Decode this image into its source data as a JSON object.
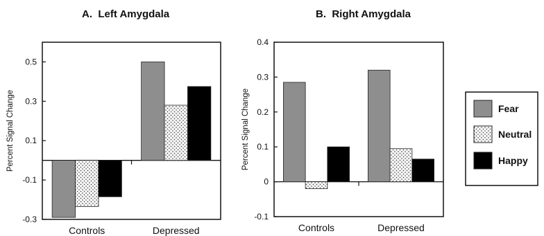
{
  "chart_data": [
    {
      "type": "bar",
      "title": "A.  Left Amygdala",
      "ylabel": "Percent Signal Change",
      "xlabel": "",
      "ylim": [
        -0.3,
        0.6
      ],
      "yticks": [
        "0.5",
        "0.3",
        "0.1",
        "-0.1",
        "-0.3"
      ],
      "ytick_values": [
        0.5,
        0.3,
        0.1,
        -0.1,
        -0.3
      ],
      "categories": [
        "Controls",
        "Depressed"
      ],
      "series": [
        {
          "name": "Fear",
          "values": [
            -0.29,
            0.5
          ]
        },
        {
          "name": "Neutral",
          "values": [
            -0.235,
            0.28
          ]
        },
        {
          "name": "Happy",
          "values": [
            -0.185,
            0.375
          ]
        }
      ],
      "grid": false
    },
    {
      "type": "bar",
      "title": "B.  Right Amygdala",
      "ylabel": "Percent Signal Change",
      "xlabel": "",
      "ylim": [
        -0.1,
        0.4
      ],
      "yticks": [
        "0.4",
        "0.3",
        "0.2",
        "0.1",
        "0",
        "-0.1"
      ],
      "ytick_values": [
        0.4,
        0.3,
        0.2,
        0.1,
        0,
        -0.1
      ],
      "categories": [
        "Controls",
        "Depressed"
      ],
      "series": [
        {
          "name": "Fear",
          "values": [
            0.285,
            0.32
          ]
        },
        {
          "name": "Neutral",
          "values": [
            -0.02,
            0.095
          ]
        },
        {
          "name": "Happy",
          "values": [
            0.1,
            0.065
          ]
        }
      ],
      "grid": false
    }
  ],
  "legend": {
    "placement": "right",
    "items": [
      {
        "label": "Fear",
        "pattern": "solid-gray"
      },
      {
        "label": "Neutral",
        "pattern": "dotted"
      },
      {
        "label": "Happy",
        "pattern": "solid-black"
      }
    ]
  },
  "colors": {
    "fear": "#8e8e8e",
    "neutral": "#f4f4f4",
    "happy": "#000000",
    "axis": "#111111"
  }
}
